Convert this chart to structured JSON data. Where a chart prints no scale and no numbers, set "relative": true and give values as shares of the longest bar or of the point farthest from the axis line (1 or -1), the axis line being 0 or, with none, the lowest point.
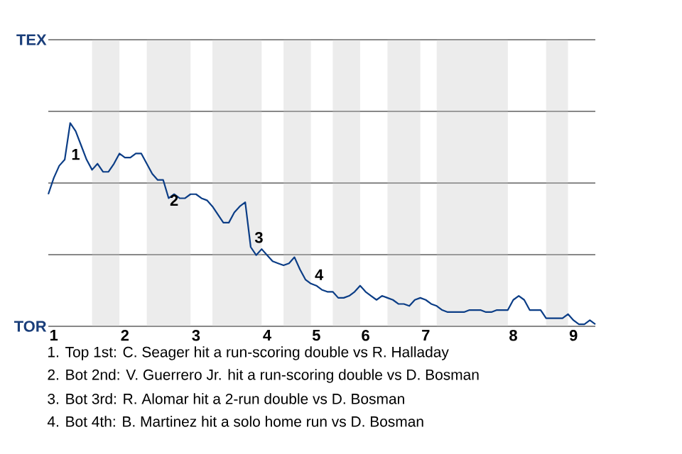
{
  "chart_data": {
    "type": "line",
    "relative": true,
    "categories": [
      null,
      "1",
      null,
      null,
      null,
      null,
      null,
      null,
      null,
      null,
      null,
      null,
      null,
      null,
      "2",
      null,
      null,
      null,
      null,
      null,
      null,
      null,
      null,
      null,
      null,
      null,
      null,
      "3",
      null,
      null,
      null,
      null,
      null,
      null,
      null,
      null,
      null,
      null,
      null,
      null,
      "4",
      null,
      null,
      null,
      null,
      null,
      null,
      null,
      null,
      "5",
      null,
      null,
      null,
      null,
      null,
      null,
      null,
      null,
      "6",
      null,
      null,
      null,
      null,
      null,
      null,
      null,
      null,
      null,
      null,
      "7",
      null,
      null,
      null,
      null,
      null,
      null,
      null,
      null,
      null,
      null,
      null,
      null,
      null,
      null,
      null,
      "8",
      null,
      null,
      null,
      null,
      null,
      null,
      null,
      null,
      null,
      null,
      "9",
      null,
      null,
      null,
      null
    ],
    "series": [
      {
        "color": "#0b3d86",
        "values": [
          0.65,
          0.73,
          0.79,
          0.82,
          1,
          0.96,
          0.89,
          0.82,
          0.77,
          0.8,
          0.76,
          0.76,
          0.8,
          0.85,
          0.83,
          0.83,
          0.85,
          0.85,
          0.8,
          0.75,
          0.72,
          0.72,
          0.63,
          0.65,
          0.63,
          0.63,
          0.65,
          0.65,
          0.63,
          0.62,
          0.59,
          0.55,
          0.51,
          0.51,
          0.56,
          0.59,
          0.61,
          0.39,
          0.35,
          0.38,
          0.35,
          0.32,
          0.31,
          0.3,
          0.31,
          0.34,
          0.28,
          0.23,
          0.21,
          0.2,
          0.18,
          0.17,
          0.17,
          0.14,
          0.14,
          0.15,
          0.17,
          0.2,
          0.17,
          0.15,
          0.13,
          0.15,
          0.14,
          0.13,
          0.11,
          0.11,
          0.1,
          0.13,
          0.14,
          0.13,
          0.11,
          0.1,
          0.08,
          0.07,
          0.07,
          0.07,
          0.07,
          0.08,
          0.08,
          0.08,
          0.07,
          0.07,
          0.08,
          0.08,
          0.08,
          0.13,
          0.15,
          0.13,
          0.08,
          0.08,
          0.08,
          0.04,
          0.04,
          0.04,
          0.04,
          0.06,
          0.03,
          0.01,
          0.01,
          0.03,
          0.01
        ]
      }
    ],
    "grid": "y",
    "marker": "none",
    "line_style": "solid",
    "annotations": [
      "TEX",
      "TOR",
      "1",
      "2",
      "3",
      "4",
      "1. Top 1st: C. Seager hit a run-scoring double vs R. Halladay",
      "2. Bot 2nd: V. Guerrero Jr. hit a run-scoring double vs D. Bosman",
      "3. Bot 3rd: R. Alomar hit a 2-run double vs D. Bosman",
      "4. Bot 4th: B. Martinez hit a solo home run vs D. Bosman"
    ]
  }
}
